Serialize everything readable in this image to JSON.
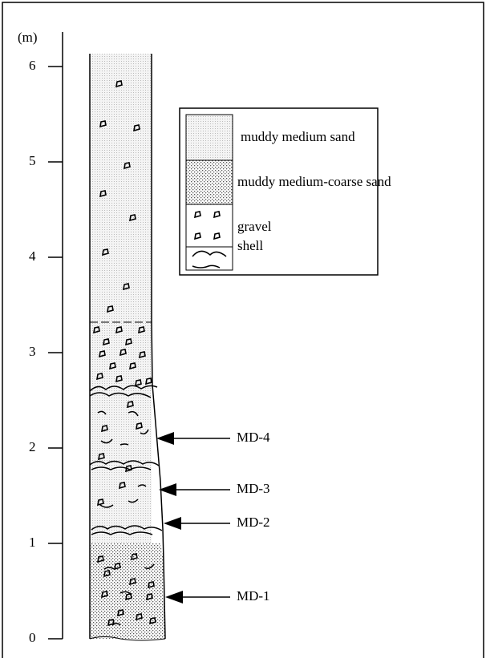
{
  "axis": {
    "unit": "(m)",
    "ticks": [
      0,
      1,
      2,
      3,
      4,
      5,
      6
    ]
  },
  "legend": {
    "items": [
      {
        "label": "muddy medium sand"
      },
      {
        "label": "muddy medium-coarse sand"
      },
      {
        "label": "gravel"
      },
      {
        "label": "shell"
      }
    ]
  },
  "samples": [
    {
      "label": "MD-4"
    },
    {
      "label": "MD-3"
    },
    {
      "label": "MD-2"
    },
    {
      "label": "MD-1"
    }
  ]
}
